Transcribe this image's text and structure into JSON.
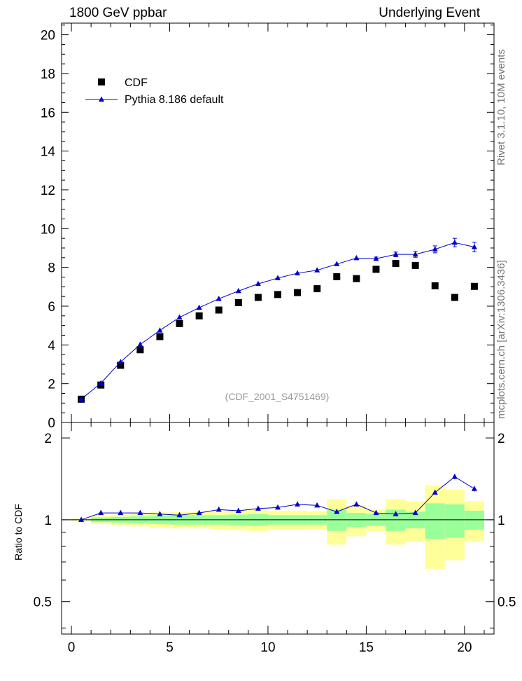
{
  "header": {
    "left_title": "1800 GeV ppbar",
    "right_title": "Underlying Event"
  },
  "side_text": {
    "rivet": "Rivet 3.1.10,  10M events",
    "mcplots": "mcplots.cern.ch [arXiv:1306.3436]"
  },
  "watermark": "(CDF_2001_S4751469)",
  "legend": {
    "cdf": "CDF",
    "pythia": "Pythia 8.186 default"
  },
  "ratio_label": "Ratio to CDF",
  "colors": {
    "data": "#000000",
    "mc": "#0000cc",
    "band_inner": "#99ff99",
    "band_outer": "#ffff99"
  },
  "chart_data": [
    {
      "type": "scatter",
      "panel": "main",
      "x": [
        0.5,
        1.5,
        2.5,
        3.5,
        4.5,
        5.5,
        6.5,
        7.5,
        8.5,
        9.5,
        10.5,
        11.5,
        12.5,
        13.5,
        14.5,
        15.5,
        16.5,
        17.5,
        18.5,
        19.5,
        20.5
      ],
      "xlim": [
        -0.5,
        21.5
      ],
      "ylim": [
        0,
        20.6
      ],
      "yticks": [
        0,
        2,
        4,
        6,
        8,
        10,
        12,
        14,
        16,
        18,
        20
      ],
      "xticks": [
        0,
        5,
        10,
        15,
        20
      ],
      "series": [
        {
          "name": "CDF",
          "marker": "square",
          "values": [
            1.2,
            1.93,
            2.95,
            3.75,
            4.43,
            5.1,
            5.5,
            5.8,
            6.18,
            6.45,
            6.6,
            6.7,
            6.9,
            7.52,
            7.42,
            7.9,
            8.2,
            8.1,
            7.05,
            6.45,
            7.02
          ]
        },
        {
          "name": "Pythia 8.186 default",
          "marker": "triangle",
          "values": [
            1.2,
            2.03,
            3.12,
            4.02,
            4.75,
            5.42,
            5.92,
            6.38,
            6.78,
            7.15,
            7.45,
            7.7,
            7.85,
            8.17,
            8.48,
            8.45,
            8.67,
            8.67,
            8.93,
            9.28,
            9.05
          ],
          "errors": [
            0,
            0,
            0,
            0,
            0,
            0,
            0,
            0,
            0,
            0,
            0,
            0,
            0,
            0,
            0,
            0.08,
            0.12,
            0.15,
            0.18,
            0.22,
            0.25
          ]
        }
      ]
    },
    {
      "type": "line",
      "panel": "ratio",
      "ylabel": "Ratio to CDF",
      "x": [
        0.5,
        1.5,
        2.5,
        3.5,
        4.5,
        5.5,
        6.5,
        7.5,
        8.5,
        9.5,
        10.5,
        11.5,
        12.5,
        13.5,
        14.5,
        15.5,
        16.5,
        17.5,
        18.5,
        19.5,
        20.5
      ],
      "xlim": [
        -0.5,
        21.5
      ],
      "ylim": [
        0.38,
        2.28
      ],
      "yticks": [
        0.5,
        1,
        2
      ],
      "xticks": [
        0,
        5,
        10,
        15,
        20
      ],
      "series": [
        {
          "name": "Pythia 8.186 default",
          "values": [
            1.0,
            1.06,
            1.06,
            1.06,
            1.05,
            1.04,
            1.06,
            1.09,
            1.08,
            1.1,
            1.11,
            1.14,
            1.13,
            1.07,
            1.14,
            1.06,
            1.05,
            1.06,
            1.26,
            1.44,
            1.3
          ],
          "errors": [
            0,
            0,
            0,
            0,
            0,
            0,
            0,
            0,
            0,
            0,
            0,
            0,
            0,
            0,
            0,
            0,
            0.01,
            0.015,
            0.02,
            0.03,
            0.03
          ]
        }
      ],
      "bands": {
        "inner_low": [
          0.995,
          0.98,
          0.975,
          0.97,
          0.965,
          0.96,
          0.96,
          0.96,
          0.955,
          0.95,
          0.96,
          0.96,
          0.96,
          0.91,
          0.94,
          0.95,
          0.91,
          0.93,
          0.85,
          0.86,
          0.92
        ],
        "inner_high": [
          1.005,
          1.02,
          1.025,
          1.03,
          1.035,
          1.04,
          1.04,
          1.04,
          1.045,
          1.05,
          1.04,
          1.04,
          1.04,
          1.09,
          1.06,
          1.05,
          1.09,
          1.07,
          1.15,
          1.14,
          1.08
        ],
        "outer_low": [
          0.99,
          0.965,
          0.955,
          0.945,
          0.935,
          0.93,
          0.93,
          0.925,
          0.915,
          0.905,
          0.92,
          0.92,
          0.925,
          0.81,
          0.87,
          0.91,
          0.81,
          0.83,
          0.66,
          0.71,
          0.83
        ],
        "outer_high": [
          1.01,
          1.035,
          1.045,
          1.055,
          1.065,
          1.07,
          1.07,
          1.075,
          1.085,
          1.095,
          1.08,
          1.08,
          1.075,
          1.19,
          1.13,
          1.09,
          1.19,
          1.17,
          1.34,
          1.29,
          1.17
        ]
      }
    }
  ]
}
